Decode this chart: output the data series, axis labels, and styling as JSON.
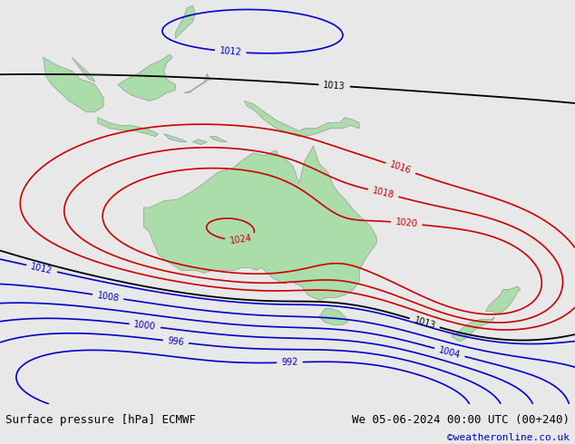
{
  "title_left": "Surface pressure [hPa] ECMWF",
  "title_right": "We 05-06-2024 00:00 UTC (00+240)",
  "copyright": "©weatheronline.co.uk",
  "bg_color": "#e8e8e8",
  "land_color": "#aaddaa",
  "fig_width": 6.34,
  "fig_height": 4.9,
  "dpi": 100,
  "bottom_bar_color": "#ffffff",
  "text_color_left": "#000000",
  "text_color_right": "#000000",
  "copyright_color": "#0000cc",
  "font_size_bottom": 9,
  "isobar_red_color": "#cc0000",
  "isobar_blue_color": "#0000cc",
  "isobar_black_color": "#000000",
  "label_fontsize": 7,
  "red_isobars": [
    1016,
    1018,
    1020,
    1024
  ],
  "blue_isobars": [
    992,
    996,
    1000,
    1004,
    1008,
    1012
  ],
  "black_isobars": [
    1013
  ]
}
